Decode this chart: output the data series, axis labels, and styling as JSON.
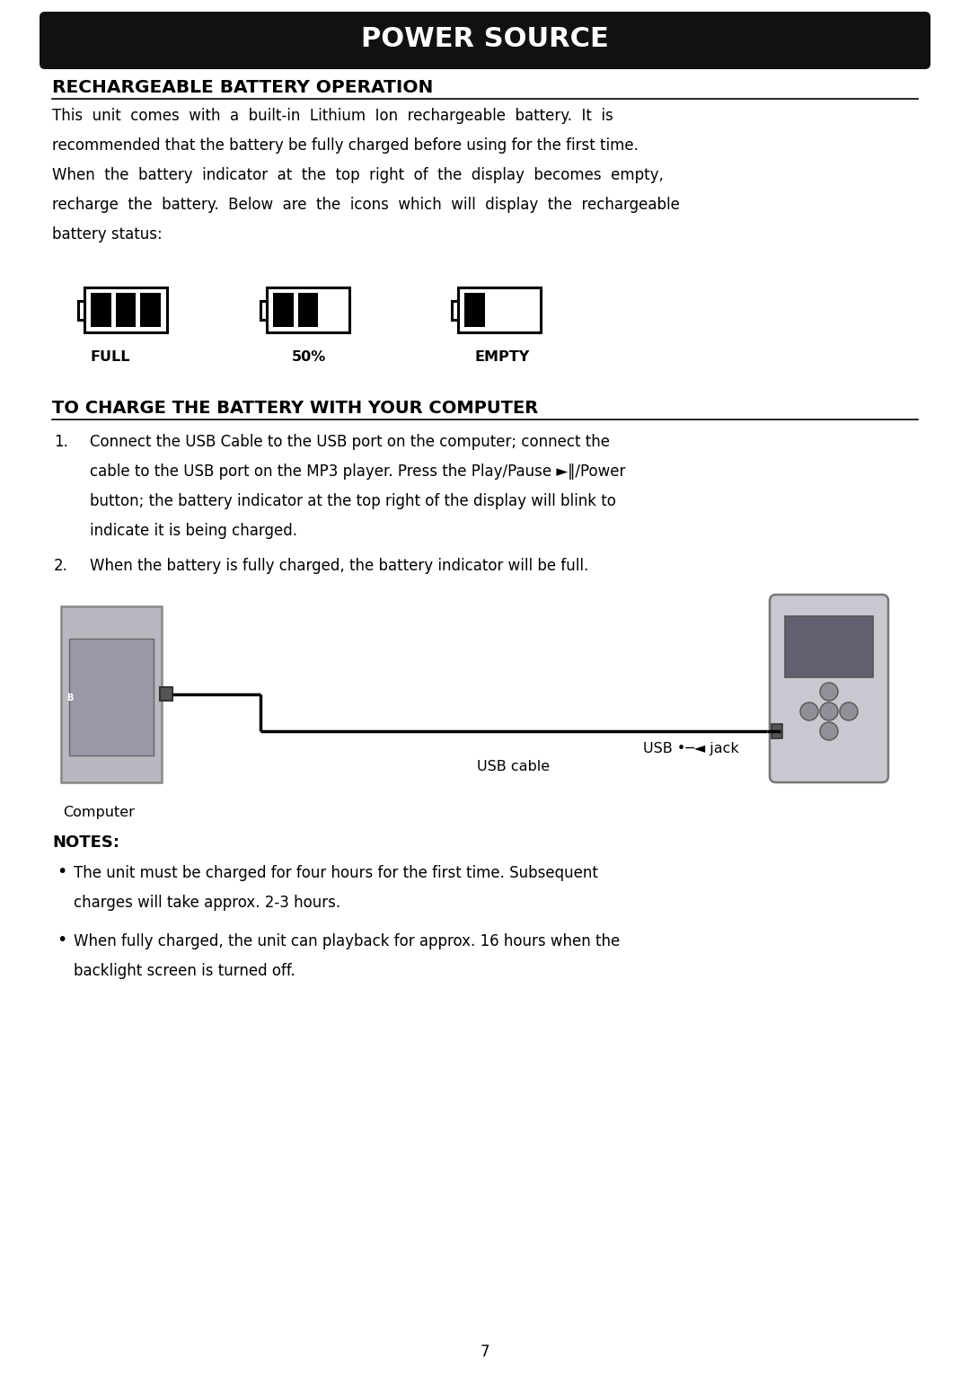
{
  "title": "POWER SOURCE",
  "title_bg": "#111111",
  "title_color": "#ffffff",
  "section1_heading": "RECHARGEABLE BATTERY OPERATION",
  "body_text": [
    "This  unit  comes  with  a  built-in  Lithium  Ion  rechargeable  battery.  It  is",
    "recommended that the battery be fully charged before using for the first time.",
    "When  the  battery  indicator  at  the  top  right  of  the  display  becomes  empty,",
    "recharge  the  battery.  Below  are  the  icons  which  will  display  the  rechargeable",
    "battery status:"
  ],
  "battery_labels": [
    "FULL",
    "50%",
    "EMPTY"
  ],
  "battery_fills": [
    3,
    2,
    1
  ],
  "section2_heading": "TO CHARGE THE BATTERY WITH YOUR COMPUTER",
  "step1_lines": [
    "Connect the USB Cable to the USB port on the computer; connect the",
    "cable to the USB port on the MP3 player. Press the Play/Pause ►‖/Power",
    "button; the battery indicator at the top right of the display will blink to",
    "indicate it is being charged."
  ],
  "step2": "When the battery is fully charged, the battery indicator will be full.",
  "notes_heading": "NOTES:",
  "note1_lines": [
    "The unit must be charged for four hours for the first time. Subsequent",
    "charges will take approx. 2-3 hours."
  ],
  "note2_lines": [
    "When fully charged, the unit can playback for approx. 16 hours when the",
    "backlight screen is turned off."
  ],
  "label_computer": "Computer",
  "label_usb_cable": "USB cable",
  "label_usb_jack": "USB •─◄ jack",
  "page_number": "7",
  "bg_color": "#ffffff",
  "text_color": "#000000"
}
